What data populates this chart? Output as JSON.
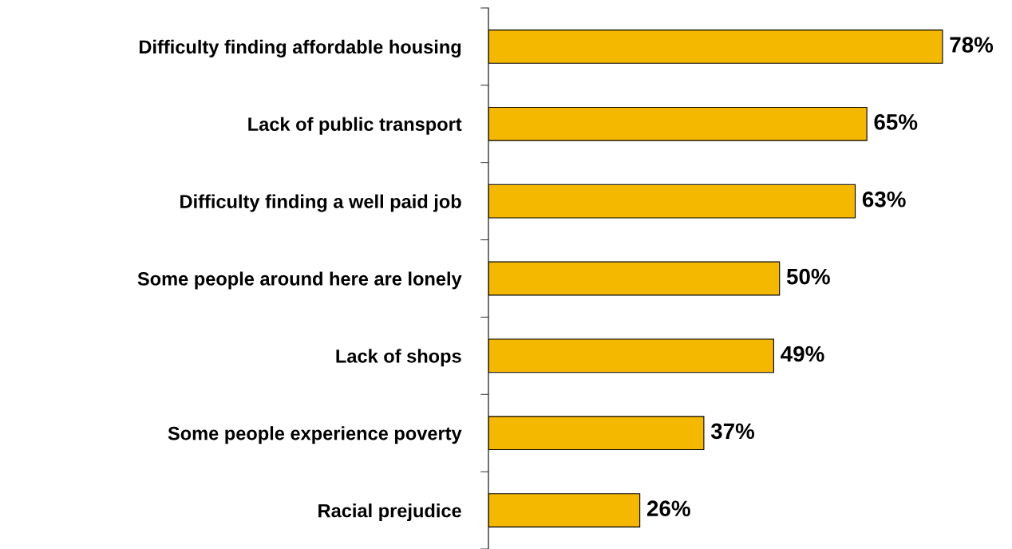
{
  "chart_data": {
    "type": "bar",
    "orientation": "horizontal",
    "categories": [
      "Difficulty finding affordable housing",
      "Lack of public transport",
      "Difficulty finding a well paid job",
      "Some people around here are lonely",
      "Lack of shops",
      "Some people experience poverty",
      "Racial prejudice"
    ],
    "values": [
      78,
      65,
      63,
      50,
      49,
      37,
      26
    ],
    "value_labels": [
      "78%",
      "65%",
      "63%",
      "50%",
      "49%",
      "37%",
      "26%"
    ],
    "color": "#f5b800"
  }
}
